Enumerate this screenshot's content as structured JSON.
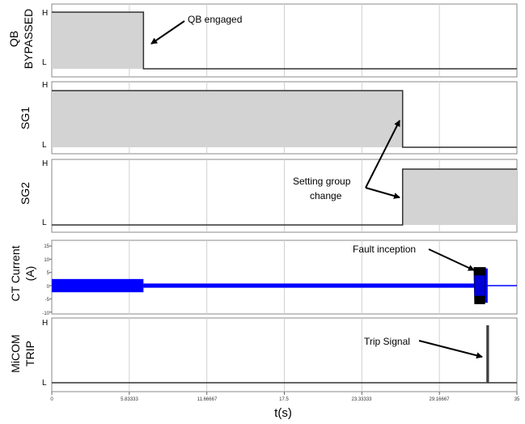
{
  "chart_data": {
    "type": "line",
    "xlabel": "t(s)",
    "xlim": [
      0,
      35
    ],
    "xticks": [
      "0",
      "5.83333",
      "11.66667",
      "17.5",
      "23.33333",
      "29.16667",
      "35"
    ],
    "panels": [
      {
        "kind": "digital",
        "ylabel": [
          "QB",
          "BYPASSED"
        ],
        "levels": [
          "H",
          "L"
        ],
        "steps": [
          {
            "t": 0,
            "v": "H"
          },
          {
            "t": 6.9,
            "v": "L"
          },
          {
            "t": 35,
            "v": "L"
          }
        ],
        "fill": "#d3d3d3"
      },
      {
        "kind": "digital",
        "ylabel": [
          "SG1"
        ],
        "levels": [
          "H",
          "L"
        ],
        "steps": [
          {
            "t": 0,
            "v": "H"
          },
          {
            "t": 26.4,
            "v": "L"
          },
          {
            "t": 35,
            "v": "L"
          }
        ],
        "fill": "#d3d3d3"
      },
      {
        "kind": "digital",
        "ylabel": [
          "SG2"
        ],
        "levels": [
          "H",
          "L"
        ],
        "steps": [
          {
            "t": 0,
            "v": "L"
          },
          {
            "t": 26.4,
            "v": "H"
          },
          {
            "t": 35,
            "v": "H"
          }
        ],
        "fill": "#d3d3d3"
      },
      {
        "kind": "analog",
        "ylabel": [
          "CT Current",
          "(A)"
        ],
        "ylim": [
          -10,
          15
        ],
        "yticks": [
          "15",
          "10",
          "5",
          "0",
          "-5",
          "-10"
        ],
        "series": [
          {
            "color": "#0000ff",
            "envelope": [
              {
                "t0": 0,
                "t1": 6.9,
                "amp": 2.5
              },
              {
                "t0": 6.9,
                "t1": 31.9,
                "amp": 0.8
              },
              {
                "t0": 31.9,
                "t1": 32.8,
                "amp": 6.5
              },
              {
                "t0": 32.8,
                "t1": 35,
                "amp": 0
              }
            ]
          }
        ],
        "fault_burst": {
          "t0": 31.8,
          "t1": 32.6,
          "amp": 7,
          "color": "#000000"
        }
      },
      {
        "kind": "digital",
        "ylabel": [
          "MiCOM",
          "TRIP"
        ],
        "levels": [
          "H",
          "L"
        ],
        "pulse": {
          "t0": 32.7,
          "t1": 32.9,
          "color": "#404040"
        }
      }
    ],
    "annotations": [
      {
        "text": "QB engaged",
        "panel": 0
      },
      {
        "text": [
          "Setting group",
          "change"
        ],
        "panel": 2
      },
      {
        "text": "Fault inception",
        "panel": 3
      },
      {
        "text": "Trip Signal",
        "panel": 4
      }
    ]
  }
}
